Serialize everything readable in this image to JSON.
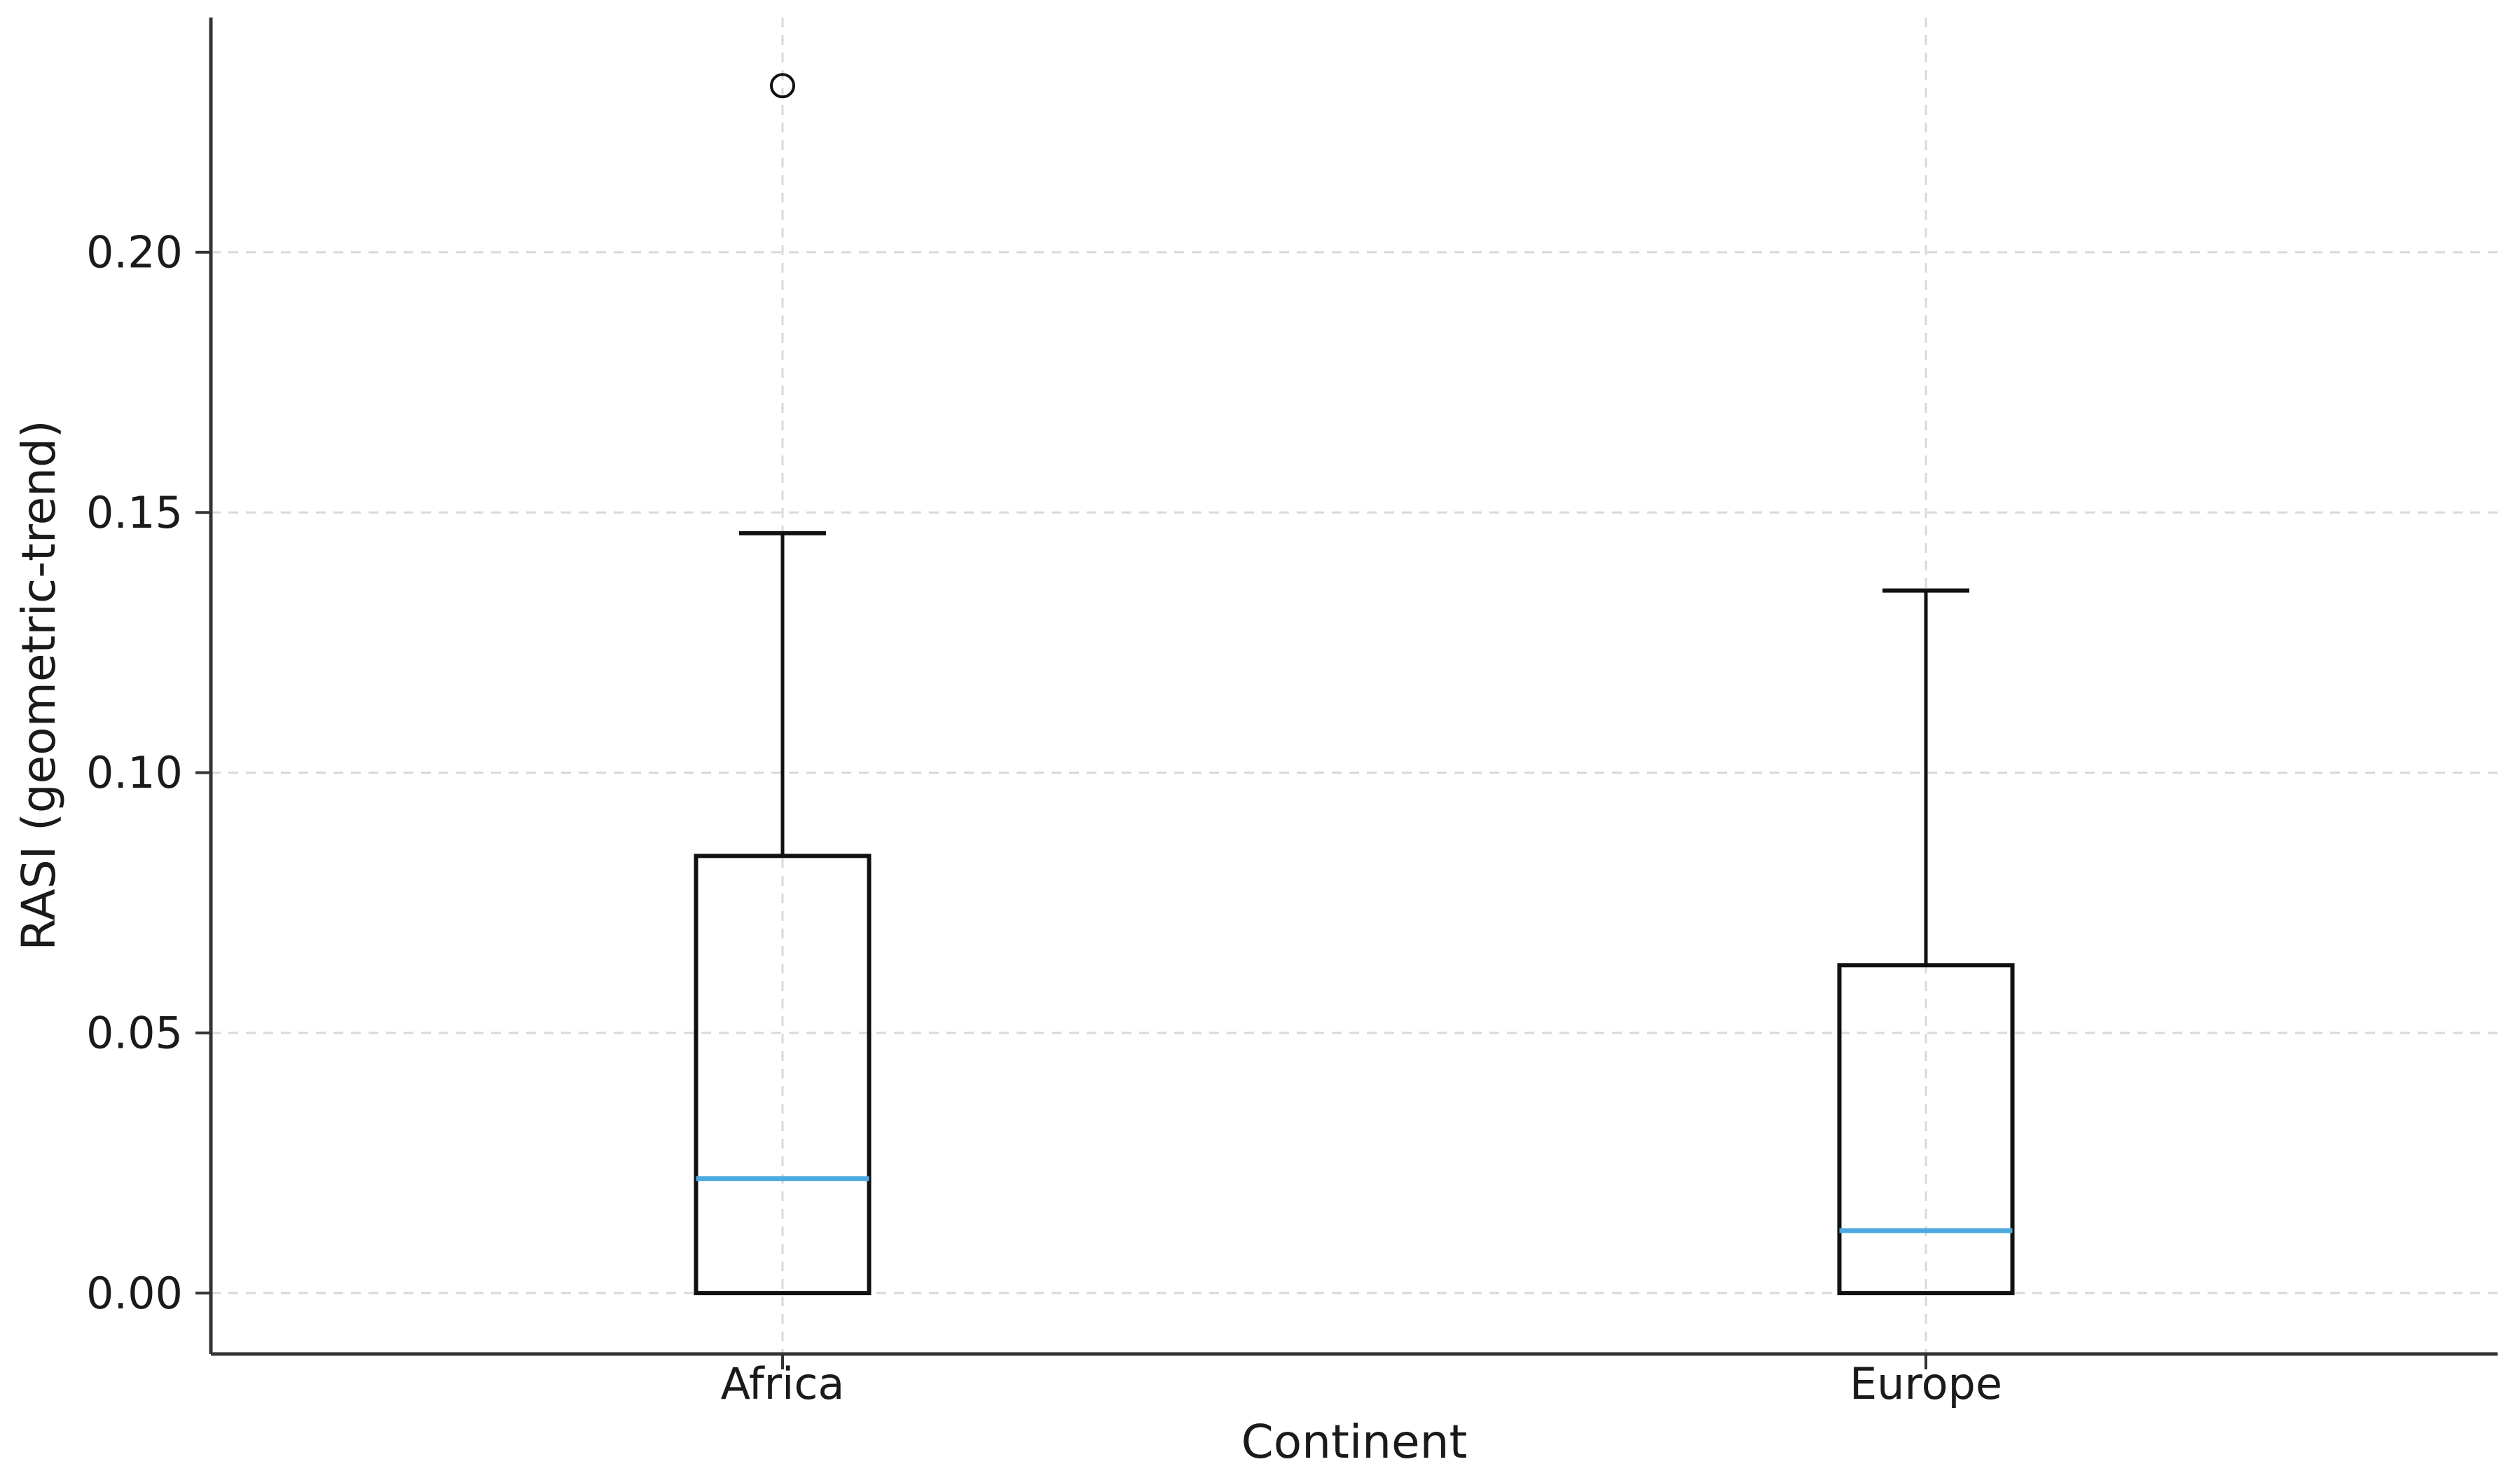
{
  "chart_data": {
    "type": "box",
    "title": "",
    "xlabel": "Continent",
    "ylabel": "RASI (geometric-trend)",
    "categories": [
      "Africa",
      "Europe"
    ],
    "series": [
      {
        "name": "Africa",
        "whislo": 0.0,
        "q1": 0.0,
        "med": 0.022,
        "q3": 0.084,
        "whishi": 0.146,
        "outliers": [
          0.232
        ]
      },
      {
        "name": "Europe",
        "whislo": 0.0,
        "q1": 0.0,
        "med": 0.012,
        "q3": 0.063,
        "whishi": 0.135,
        "outliers": []
      }
    ],
    "yticks": [
      0.0,
      0.05,
      0.1,
      0.15,
      0.2
    ],
    "ytick_labels": [
      "0.00",
      "0.05",
      "0.10",
      "0.15",
      "0.20"
    ],
    "ylim": [
      -0.0117,
      0.2451
    ],
    "grid": true,
    "legend_position": "none",
    "colors": {
      "box_edge": "#111111",
      "median": "#4da9e0",
      "grid": "#d9d9d9",
      "spine": "#333333",
      "tick": "#333333",
      "text": "#1a1a1a",
      "background": "#ffffff"
    }
  }
}
